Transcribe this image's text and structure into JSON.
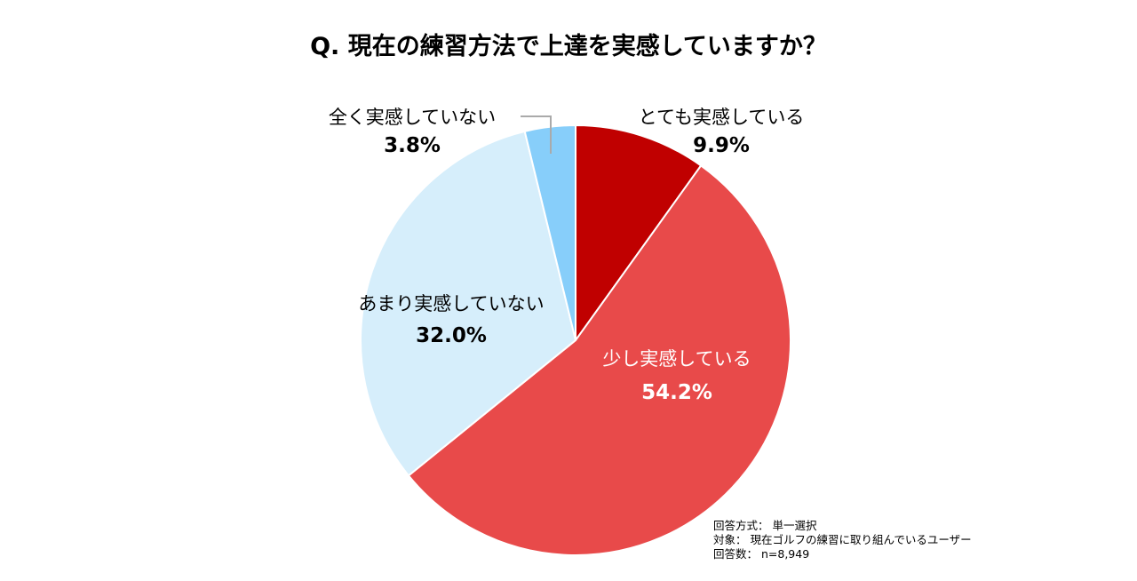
{
  "chart_data": {
    "type": "pie",
    "title": "Q. 現在の練習方法で上達を実感していますか？",
    "slices": [
      {
        "label": "とても実感している",
        "value": 9.9,
        "display": "9.9%",
        "color": "#C00000"
      },
      {
        "label": "少し実感している",
        "value": 54.2,
        "display": "54.2%",
        "color": "#E84A4A"
      },
      {
        "label": "あまり実感していない",
        "value": 32.0,
        "display": "32.0%",
        "color": "#D6EEFB"
      },
      {
        "label": "全く実感していない",
        "value": 3.8,
        "display": "3.8%",
        "color": "#87CEFA"
      }
    ],
    "start_angle": "12 o'clock",
    "direction": "clockwise"
  },
  "notes": [
    "回答方式： 単一選択",
    "対象： 現在ゴルフの練習に取り組んでいるユーザー",
    "回答数： n=8,949"
  ]
}
